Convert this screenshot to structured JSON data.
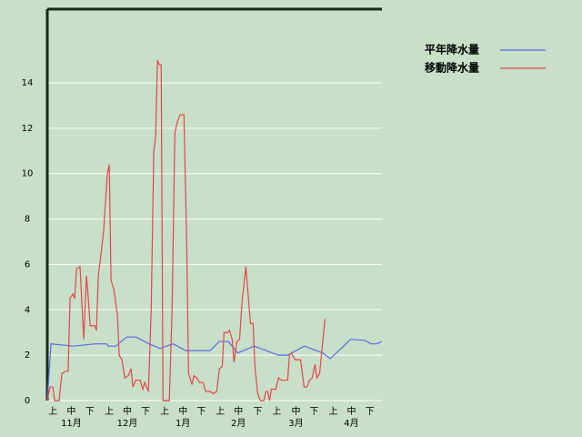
{
  "chart_data": {
    "type": "line",
    "ylim": [
      0,
      17.25
    ],
    "yticks": [
      0,
      2,
      4,
      6,
      8,
      10,
      12,
      14
    ],
    "grid": true,
    "xlim": [
      0,
      181
    ],
    "xticks": [
      {
        "value": 3,
        "label": "上"
      },
      {
        "value": 13,
        "label": "中"
      },
      {
        "value": 23,
        "label": "下"
      },
      {
        "value": 33.5,
        "label": "上"
      },
      {
        "value": 43.3,
        "label": "中"
      },
      {
        "value": 53.2,
        "label": "下"
      },
      {
        "value": 63.5,
        "label": "上"
      },
      {
        "value": 73.4,
        "label": "中"
      },
      {
        "value": 83.3,
        "label": "下"
      },
      {
        "value": 93.6,
        "label": "上"
      },
      {
        "value": 103.4,
        "label": "中"
      },
      {
        "value": 113.8,
        "label": "下"
      },
      {
        "value": 124.1,
        "label": "上"
      },
      {
        "value": 134.5,
        "label": "中"
      },
      {
        "value": 144.3,
        "label": "下"
      },
      {
        "value": 154.7,
        "label": "上"
      },
      {
        "value": 164.5,
        "label": "中"
      },
      {
        "value": 174.4,
        "label": "下"
      }
    ],
    "month_ticks": [
      {
        "value": 13,
        "label": "11月"
      },
      {
        "value": 43.3,
        "label": "12月"
      },
      {
        "value": 73.4,
        "label": "1月"
      },
      {
        "value": 103.4,
        "label": "2月"
      },
      {
        "value": 134.5,
        "label": "3月"
      },
      {
        "value": 164.5,
        "label": "4月"
      }
    ],
    "series": [
      {
        "name": "平年降水量",
        "color": "#5a6ae6",
        "x": [
          0,
          2,
          14,
          26,
          32,
          33,
          37,
          43,
          48,
          55,
          61,
          68,
          75,
          88,
          93,
          98,
          103,
          112,
          125,
          130,
          139,
          149,
          153,
          159,
          164,
          172,
          175,
          178,
          181
        ],
        "values": [
          0,
          2.5,
          2.4,
          2.5,
          2.5,
          2.4,
          2.4,
          2.8,
          2.8,
          2.5,
          2.3,
          2.5,
          2.2,
          2.2,
          2.6,
          2.6,
          2.1,
          2.4,
          2.0,
          2.0,
          2.4,
          2.1,
          1.85,
          2.3,
          2.7,
          2.65,
          2.5,
          2.5,
          2.6
        ]
      },
      {
        "name": "移動降水量",
        "color": "#e64646",
        "x": [
          0,
          1.5,
          3,
          4,
          6.4,
          7.9,
          10.3,
          11.3,
          12.3,
          13.8,
          14.8,
          15.8,
          17.7,
          19.7,
          21.2,
          22.2,
          23.2,
          25.6,
          26.6,
          27.6,
          29,
          30.5,
          32.5,
          33.5,
          34.5,
          36,
          37.9,
          38.9,
          40.4,
          41.9,
          43.8,
          45.3,
          46.3,
          47.8,
          50.2,
          51.7,
          52.7,
          54.7,
          56.2,
          57.6,
          58.6,
          59.6,
          60.6,
          61.6,
          62.6,
          66,
          67.5,
          69,
          70.4,
          71.9,
          73.9,
          75.4,
          76.4,
          78.3,
          79.3,
          80.8,
          82.3,
          84.2,
          85.7,
          88.2,
          89.7,
          91.6,
          93.1,
          94.6,
          95.6,
          97.5,
          98.5,
          100,
          101,
          102.5,
          104,
          105.4,
          107.4,
          108.4,
          109.9,
          111.3,
          112.3,
          113.8,
          115.3,
          117.2,
          118.2,
          119.2,
          120.2,
          121.2,
          123.6,
          125.1,
          126.6,
          130,
          131,
          132,
          134,
          137,
          138.9,
          140.4,
          141.9,
          143.3,
          144.8,
          145.8,
          147.3,
          150.2
        ],
        "values": [
          0,
          0.6,
          0.6,
          0,
          0,
          1.2,
          1.3,
          1.3,
          4.5,
          4.7,
          4.5,
          5.8,
          5.9,
          2.7,
          5.5,
          4.5,
          3.3,
          3.3,
          3.1,
          5.5,
          6.4,
          7.5,
          10,
          10.4,
          5.3,
          4.9,
          3.8,
          2,
          1.8,
          1.0,
          1.1,
          1.4,
          0.6,
          0.9,
          0.9,
          0.5,
          0.8,
          0.4,
          4,
          11,
          11.6,
          15,
          14.8,
          14.8,
          0,
          0,
          4,
          11.8,
          12.3,
          12.6,
          12.6,
          7,
          1.2,
          0.7,
          1.1,
          1,
          0.8,
          0.8,
          0.4,
          0.4,
          0.3,
          0.4,
          1.4,
          1.5,
          3,
          3,
          3.1,
          2.7,
          1.7,
          2.6,
          2.7,
          4.4,
          5.9,
          4.9,
          3.4,
          3.4,
          1.5,
          0.3,
          0,
          0,
          0.4,
          0.4,
          0,
          0.5,
          0.5,
          1,
          0.9,
          0.9,
          2,
          2.1,
          1.8,
          1.8,
          0.6,
          0.6,
          0.9,
          1,
          1.6,
          1.0,
          1.2,
          3.6
        ]
      }
    ]
  }
}
